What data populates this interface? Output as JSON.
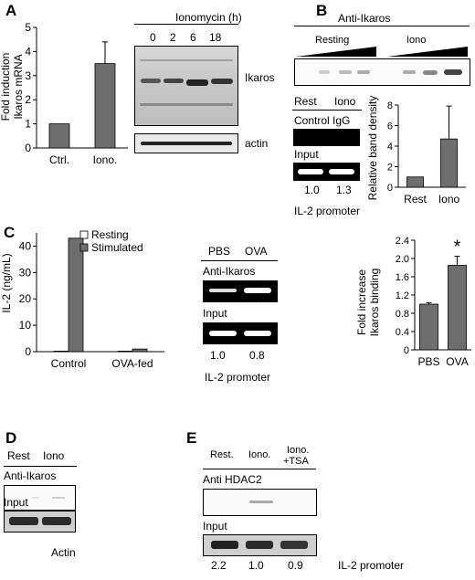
{
  "panel_labels": {
    "a": "A",
    "b": "B",
    "c": "C",
    "d": "D",
    "e": "E"
  },
  "panel_a": {
    "ylabel_line1": "Fold induction",
    "ylabel_line2": "Ikaros mRNA",
    "blot_title": "Ionomycin (h)",
    "timepoints": [
      "0",
      "2",
      "6",
      "18"
    ],
    "blot_label": "Ikaros",
    "loading_label": "actin"
  },
  "panel_b": {
    "title": "Anti-Ikaros",
    "group_resting": "Resting",
    "group_iono": "Iono",
    "lane_rest": "Rest",
    "lane_iono": "Iono",
    "control_label": "Control IgG",
    "input_label": "Input",
    "quant_rest": "1.0",
    "quant_iono": "1.3",
    "footer": "IL-2 promoter"
  },
  "panel_c": {
    "chip_pbs": "PBS",
    "chip_ova": "OVA",
    "chip_ab": "Anti-Ikaros",
    "chip_input": "Input",
    "quant_pbs": "1.0",
    "quant_ova": "0.8",
    "footer": "IL-2 promoter"
  },
  "panel_d": {
    "lane_rest": "Rest",
    "lane_iono": "Iono",
    "ab_label": "Anti-Ikaros",
    "input_label": "Input",
    "footer": "Actin"
  },
  "panel_e": {
    "lane_rest": "Rest.",
    "lane_iono": "Iono.",
    "lane_tsa_1": "Iono.",
    "lane_tsa_2": "+TSA",
    "ab_label": "Anti HDAC2",
    "input_label": "Input",
    "quant_rest": "2.2",
    "quant_iono": "1.0",
    "quant_tsa": "0.9",
    "footer": "IL-2 promoter"
  },
  "colors": {
    "bar": "#6e6e6e",
    "resting": "#ffffff",
    "stimulated": "#6e6e6e"
  },
  "chart_data": [
    {
      "type": "bar",
      "panel": "A",
      "categories": [
        "Ctrl.",
        "Iono."
      ],
      "values": [
        1.0,
        3.5
      ],
      "error": [
        0,
        0.9
      ],
      "ylabel": "Fold induction Ikaros mRNA",
      "ylim": [
        0,
        5
      ],
      "yticks": [
        "0",
        "1",
        "2",
        "3",
        "4",
        "5"
      ]
    },
    {
      "type": "bar",
      "panel": "B",
      "categories": [
        "Rest",
        "Iono"
      ],
      "values": [
        1.0,
        4.7
      ],
      "error": [
        0,
        3.2
      ],
      "ylabel": "Relative band density",
      "ylim": [
        0,
        8
      ],
      "yticks": [
        "0",
        "2",
        "4",
        "6",
        "8"
      ]
    },
    {
      "type": "bar",
      "panel": "C-left",
      "categories": [
        "Control",
        "OVA-fed"
      ],
      "series": [
        {
          "name": "Resting",
          "values": [
            0.2,
            0.2
          ]
        },
        {
          "name": "Stimulated",
          "values": [
            43.0,
            1.0
          ]
        }
      ],
      "ylabel": "IL-2 (ng/mL)",
      "ylim": [
        0,
        45
      ],
      "yticks": [
        "0",
        "10",
        "20",
        "30",
        "40"
      ],
      "legend": "top-right"
    },
    {
      "type": "bar",
      "panel": "C-right",
      "categories": [
        "PBS",
        "OVA"
      ],
      "values": [
        1.0,
        1.85
      ],
      "error": [
        0.03,
        0.2
      ],
      "ylabel": "Fold increase Ikaros binding",
      "ylim": [
        0,
        2.4
      ],
      "yticks": [
        "0",
        "0.4",
        "0.8",
        "1.2",
        "1.6",
        "2.0",
        "2.4"
      ],
      "annotation": "*"
    }
  ]
}
